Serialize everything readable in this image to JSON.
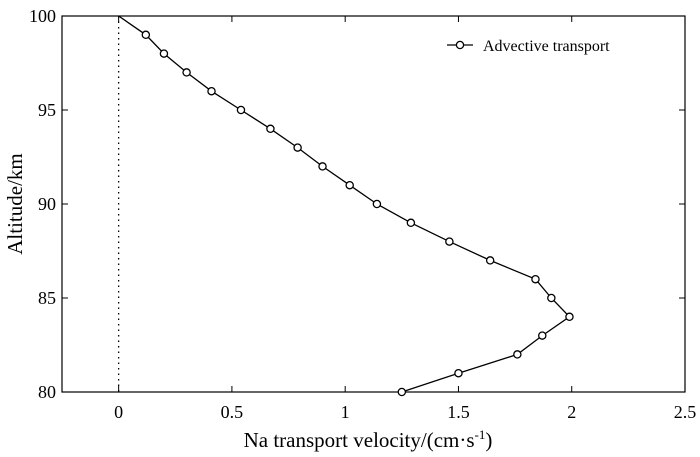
{
  "chart_data": {
    "type": "line",
    "title": "",
    "xlabel": "Na transport velocity/(cm·s",
    "xlabel_superscript": "-1",
    "xlabel_close": ")",
    "ylabel": "Altitude/km",
    "xlim": [
      -0.25,
      2.5
    ],
    "ylim": [
      80,
      100
    ],
    "x_ticks": [
      0,
      0.5,
      1,
      1.5,
      2,
      2.5
    ],
    "x_tick_labels": [
      "0",
      "0.5",
      "1",
      "1.5",
      "2",
      "2.5"
    ],
    "y_ticks": [
      80,
      85,
      90,
      95,
      100
    ],
    "y_tick_labels": [
      "80",
      "85",
      "90",
      "95",
      "100"
    ],
    "grid": false,
    "legend_position": "top-right",
    "reference_line": {
      "x": 0,
      "style": "dotted"
    },
    "series": [
      {
        "name": "Advective transport",
        "marker": "circle",
        "x": [
          0,
          0.12,
          0.2,
          0.3,
          0.41,
          0.54,
          0.67,
          0.79,
          0.9,
          1.02,
          1.14,
          1.29,
          1.46,
          1.64,
          1.84,
          1.91,
          1.99,
          1.87,
          1.76,
          1.5,
          1.25
        ],
        "y": [
          100,
          99,
          98,
          97,
          96,
          95,
          94,
          93,
          92,
          91,
          90,
          89,
          88,
          87,
          86,
          85,
          84,
          83,
          82,
          81,
          80
        ],
        "markers_start_index": 1
      }
    ]
  }
}
